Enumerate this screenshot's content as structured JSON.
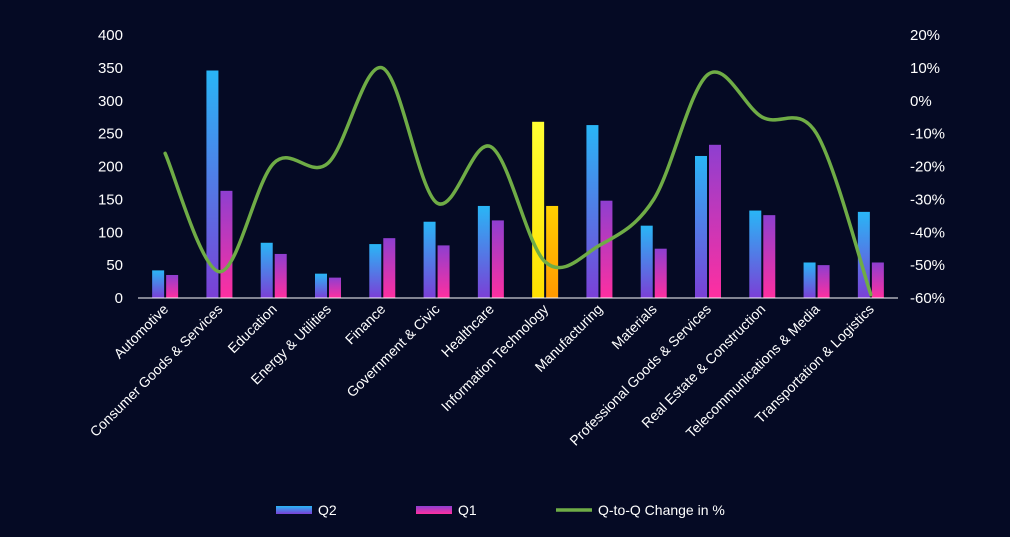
{
  "colors": {
    "background": "#050a24",
    "q2_top": "#29b6f6",
    "q2_bottom": "#7b3fd6",
    "q1_top": "#8e3fd0",
    "q1_bottom": "#ff2fa0",
    "highlight_q2_top": "#ffff33",
    "highlight_q2_bottom": "#ffe000",
    "highlight_q1_top": "#ffd000",
    "highlight_q1_bottom": "#ff9900",
    "line": "#6fac46",
    "axis": "#ffffff"
  },
  "chart_data": {
    "type": "bar",
    "title": "",
    "xlabel": "",
    "ylabel": "",
    "categories": [
      "Automotive",
      "Consumer Goods & Services",
      "Education",
      "Energy & Utilities",
      "Finance",
      "Government & Civic",
      "Healthcare",
      "Information Technology",
      "Manufacturing",
      "Materials",
      "Professional Goods & Services",
      "Real Estate & Construction",
      "Telecommunications & Media",
      "Transportation & Logistics"
    ],
    "series": [
      {
        "name": "Q2",
        "type": "bar",
        "axis": "left",
        "values": [
          42,
          346,
          84,
          37,
          82,
          116,
          140,
          268,
          263,
          110,
          216,
          133,
          54,
          131
        ]
      },
      {
        "name": "Q1",
        "type": "bar",
        "axis": "left",
        "values": [
          35,
          163,
          67,
          31,
          91,
          80,
          118,
          140,
          148,
          75,
          233,
          126,
          50,
          54
        ]
      },
      {
        "name": "Q-to-Q Change in %",
        "type": "line",
        "axis": "right",
        "values": [
          -16,
          -52,
          -19,
          -19,
          10,
          -31,
          -14,
          -49,
          -44,
          -30,
          8,
          -5,
          -10,
          -59
        ]
      }
    ],
    "highlight_category": "Information Technology",
    "y_left": {
      "min": 0,
      "max": 400,
      "ticks": [
        "0",
        "50",
        "100",
        "150",
        "200",
        "250",
        "300",
        "350",
        "400"
      ]
    },
    "y_right": {
      "min": -60,
      "max": 20,
      "ticks": [
        "-60%",
        "-50%",
        "-40%",
        "-30%",
        "-20%",
        "-10%",
        "0%",
        "10%",
        "20%"
      ]
    },
    "grid": false,
    "legend_position": "bottom"
  }
}
